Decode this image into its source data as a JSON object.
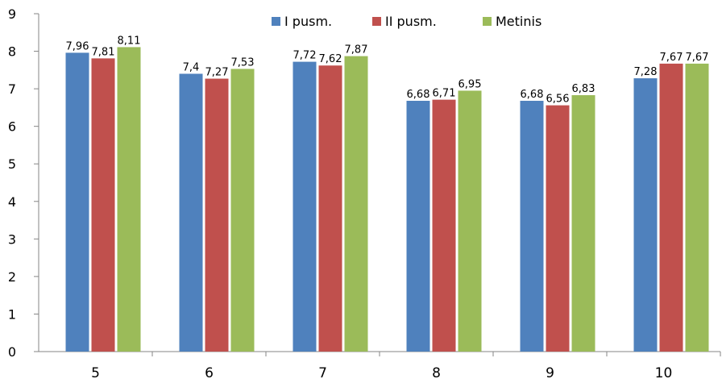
{
  "chart_data": {
    "type": "bar",
    "categories": [
      "5",
      "6",
      "7",
      "8",
      "9",
      "10"
    ],
    "series": [
      {
        "name": "I pusm.",
        "color": "#4F81BD",
        "values": [
          7.96,
          7.4,
          7.72,
          6.68,
          6.68,
          7.28
        ],
        "labels": [
          "7,96",
          "7,4",
          "7,72",
          "6,68",
          "6,68",
          "7,28"
        ]
      },
      {
        "name": "II pusm.",
        "color": "#C0504D",
        "values": [
          7.81,
          7.27,
          7.62,
          6.71,
          6.56,
          7.67
        ],
        "labels": [
          "7,81",
          "7,27",
          "7,62",
          "6,71",
          "6,56",
          "7,67"
        ]
      },
      {
        "name": "Metinis",
        "color": "#9BBB59",
        "values": [
          8.11,
          7.53,
          7.87,
          6.95,
          6.83,
          7.67
        ],
        "labels": [
          "8,11",
          "7,53",
          "7,87",
          "6,95",
          "6,83",
          "7,67"
        ]
      }
    ],
    "yticks": [
      "0",
      "1",
      "2",
      "3",
      "4",
      "5",
      "6",
      "7",
      "8",
      "9"
    ],
    "ylim": [
      0,
      9
    ],
    "grid": false,
    "legend_position": "top-right"
  }
}
